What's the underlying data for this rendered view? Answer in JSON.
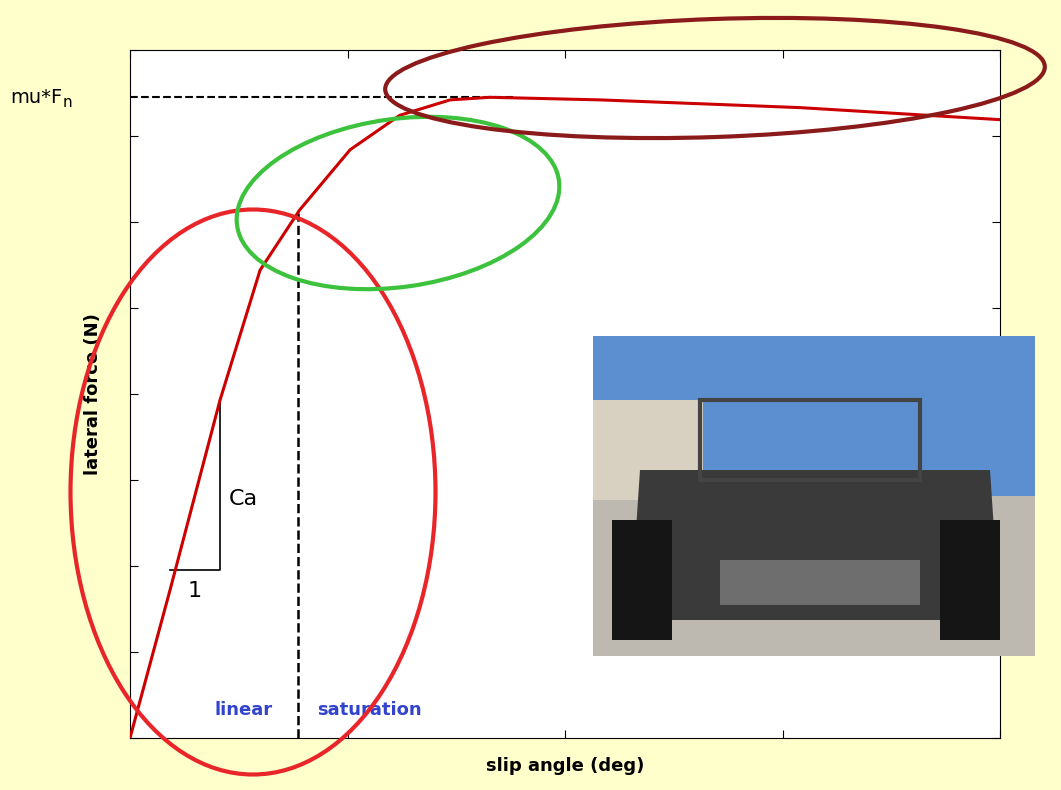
{
  "chart_data": {
    "type": "line",
    "x_label": "slip angle (deg)",
    "y_label": "lateral force (N)",
    "x": [
      0,
      0.92,
      2.07,
      2.99,
      3.9,
      5.06,
      6.2,
      7.36,
      8.28,
      10.8,
      15.4,
      20
    ],
    "values": [
      0,
      1.72,
      3.93,
      5.44,
      6.14,
      6.84,
      7.24,
      7.42,
      7.45,
      7.42,
      7.33,
      7.19
    ],
    "color": "#cc0000",
    "xlim": [
      0,
      20
    ],
    "ylim": [
      0,
      8
    ],
    "xticks": [
      0,
      5,
      10,
      15,
      20
    ],
    "yticks": [
      0,
      1,
      2,
      3,
      4,
      5,
      6,
      7,
      8
    ],
    "tick_labels": false,
    "peak": {
      "label": "mu*F",
      "label_subscript": "n",
      "value": 7.45,
      "x_end": 8.8
    },
    "regions": {
      "boundary": 3.86,
      "labels": [
        "linear",
        "saturation"
      ],
      "color": "#3344cc"
    },
    "slope": {
      "label": "Ca",
      "run_label": 1,
      "x": [
        0.92,
        2.07
      ],
      "y": [
        1.95,
        3.93
      ]
    }
  }
}
